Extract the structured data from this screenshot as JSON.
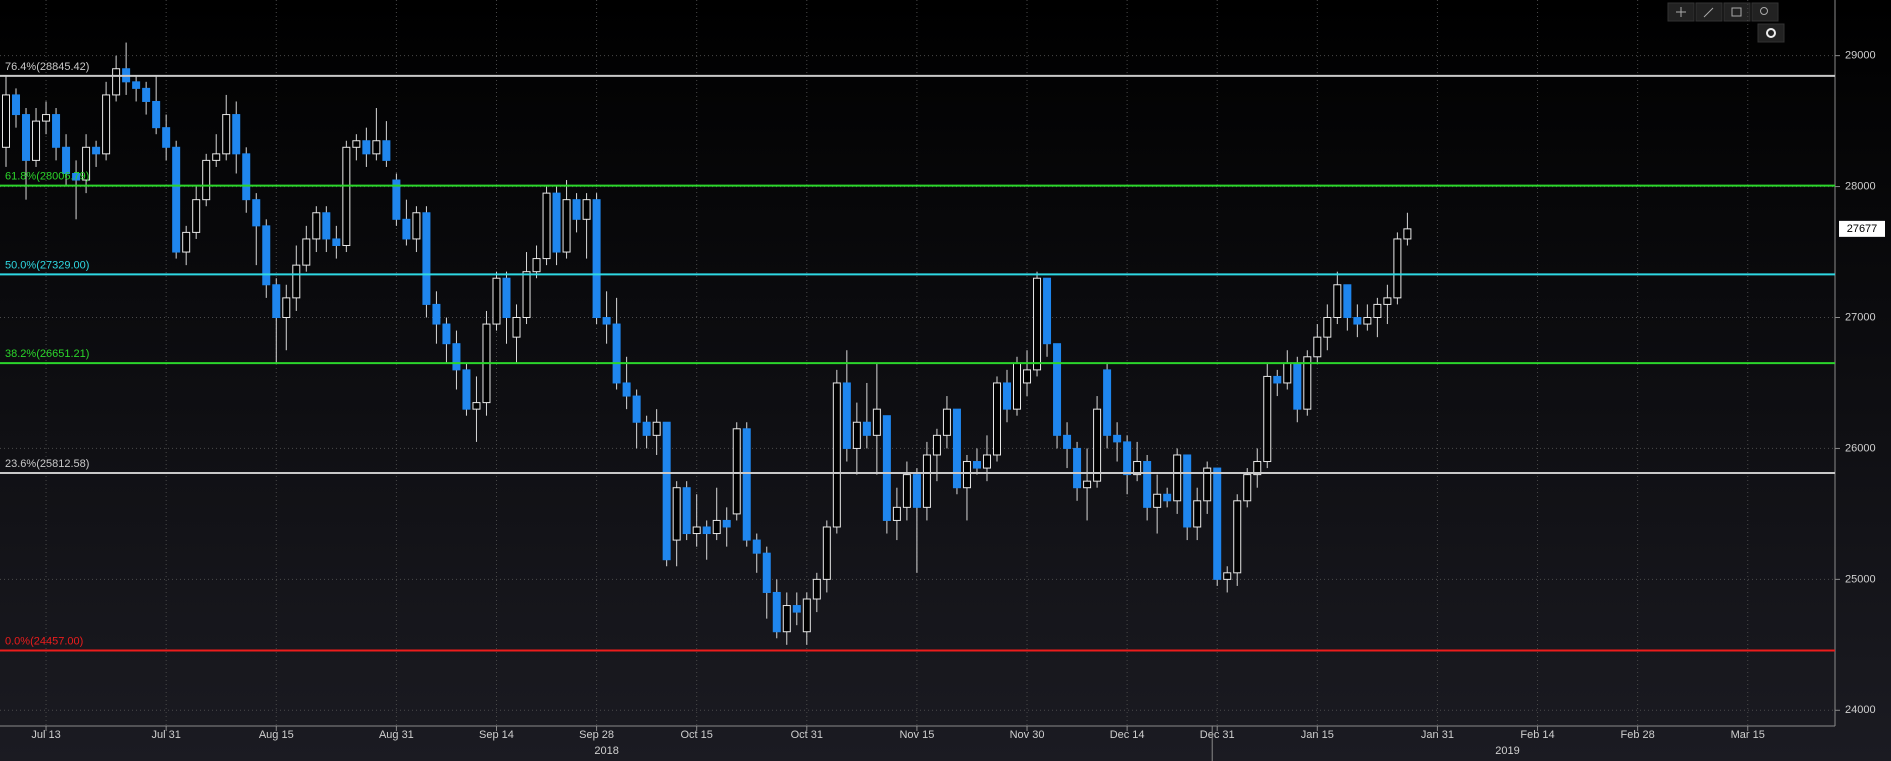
{
  "chart_data": {
    "type": "candlestick",
    "categories": [
      null,
      null,
      null,
      null,
      "Jul 13",
      null,
      null,
      null,
      null,
      null,
      null,
      null,
      null,
      null,
      null,
      null,
      "Jul 31",
      null,
      null,
      null,
      null,
      null,
      null,
      null,
      null,
      null,
      null,
      "Aug 15",
      null,
      null,
      null,
      null,
      null,
      null,
      null,
      null,
      null,
      null,
      null,
      "Aug 31",
      null,
      null,
      null,
      null,
      null,
      null,
      null,
      null,
      null,
      "Sep 14",
      null,
      null,
      null,
      null,
      null,
      null,
      null,
      null,
      null,
      "Sep 28",
      null,
      null,
      null,
      null,
      null,
      null,
      null,
      null,
      null,
      "Oct 15",
      null,
      null,
      null,
      null,
      null,
      null,
      null,
      null,
      null,
      null,
      "Oct 31",
      null,
      null,
      null,
      null,
      null,
      null,
      null,
      null,
      null,
      null,
      "Nov 15",
      null,
      null,
      null,
      null,
      null,
      null,
      null,
      null,
      null,
      null,
      "Nov 30",
      null,
      null,
      null,
      null,
      null,
      null,
      null,
      null,
      null,
      "Dec 14",
      null,
      null,
      null,
      null,
      null,
      null,
      null,
      null,
      "Dec 31",
      null,
      null,
      null,
      null,
      null,
      null,
      null,
      null,
      null,
      "Jan 15",
      null,
      null,
      null,
      null,
      null,
      null,
      null,
      null,
      null,
      null,
      null,
      "Jan 31",
      null,
      null,
      null,
      null,
      null,
      null,
      null,
      null,
      null,
      "Feb 14",
      null,
      null,
      null,
      null,
      null,
      null,
      null,
      null,
      null,
      "Feb 28",
      null,
      null,
      null,
      null,
      null,
      null,
      null,
      null,
      null,
      null,
      "Mar 15",
      null,
      null,
      null,
      null,
      null,
      null,
      null,
      null
    ],
    "open": [
      28300,
      28700,
      28550,
      28200,
      28500,
      28550,
      28300,
      28100,
      28050,
      28300,
      28250,
      28700,
      28900,
      28800,
      28750,
      28650,
      28450,
      28300,
      27500,
      27650,
      27900,
      28200,
      28250,
      28550,
      28250,
      27900,
      27700,
      27250,
      27000,
      27150,
      27400,
      27600,
      27800,
      27600,
      27550,
      28300,
      28350,
      28250,
      28350,
      28050,
      27750,
      27600,
      27800,
      27100,
      26950,
      26800,
      26600,
      26300,
      26350,
      26950,
      27300,
      26850,
      27000,
      27350,
      27450,
      27950,
      27500,
      27900,
      27750,
      27900,
      27000,
      26950,
      26500,
      26400,
      26200,
      26100,
      26200,
      25300,
      25700,
      25350,
      25400,
      25350,
      25450,
      25500,
      26150,
      25300,
      25200,
      24900,
      24600,
      24800,
      24600,
      24850,
      25000,
      25400,
      26500,
      26000,
      26200,
      26100,
      26250,
      25450,
      25550,
      25800,
      25550,
      25950,
      26100,
      26300,
      25700,
      25900,
      25850,
      25950,
      26500,
      26300,
      26500,
      26600,
      27300,
      26800,
      26100,
      26000,
      25700,
      25750,
      26600,
      26100,
      26050,
      25800,
      25900,
      25550,
      25650,
      25600,
      25950,
      25400,
      25600,
      25850,
      25000,
      25050,
      25600,
      25800,
      25900,
      26550,
      26500,
      26650,
      26300,
      26700,
      26850,
      27000,
      27250,
      27000,
      26950,
      27000,
      27100,
      27150,
      27600,
      null,
      null,
      null,
      null,
      null,
      null,
      null,
      null,
      null,
      null,
      null,
      null,
      null,
      null,
      null,
      null,
      null,
      null,
      null,
      null,
      null,
      null,
      null,
      null,
      null,
      null,
      null,
      null,
      null,
      null,
      null,
      null,
      null,
      null,
      null,
      null,
      null,
      null,
      null,
      null,
      null,
      null
    ],
    "high": [
      28850,
      28750,
      28600,
      28600,
      28650,
      28600,
      28400,
      28200,
      28400,
      28350,
      28800,
      29000,
      29100,
      28850,
      28800,
      28850,
      28550,
      28350,
      27700,
      28000,
      28250,
      28400,
      28700,
      28650,
      28300,
      27950,
      27750,
      27300,
      27250,
      27550,
      27700,
      27850,
      27850,
      27700,
      28350,
      28400,
      28450,
      28600,
      28500,
      28100,
      27900,
      27850,
      27850,
      27200,
      27000,
      26900,
      26650,
      26550,
      27050,
      27350,
      27350,
      27100,
      27500,
      27550,
      28000,
      28000,
      28050,
      27950,
      27950,
      27950,
      27200,
      27150,
      26700,
      26450,
      26250,
      26300,
      26200,
      25750,
      25750,
      25650,
      25450,
      25700,
      25550,
      26200,
      26200,
      25350,
      25250,
      25000,
      24900,
      24900,
      24900,
      25050,
      25450,
      26600,
      26750,
      26350,
      26500,
      26650,
      26250,
      25700,
      25900,
      25850,
      26050,
      26150,
      26400,
      26300,
      25950,
      26000,
      26100,
      26550,
      26600,
      26700,
      26750,
      27350,
      27300,
      26800,
      26200,
      26050,
      26000,
      26400,
      26650,
      26200,
      26100,
      26050,
      25950,
      25800,
      25700,
      26000,
      25950,
      25700,
      25900,
      25850,
      25100,
      25650,
      25850,
      26000,
      26650,
      26600,
      26750,
      26700,
      26750,
      26950,
      27100,
      27350,
      27250,
      27100,
      27100,
      27150,
      27250,
      27650,
      27800,
      null,
      null,
      null,
      null,
      null,
      null,
      null,
      null,
      null,
      null,
      null,
      null,
      null,
      null,
      null,
      null,
      null,
      null,
      null,
      null,
      null,
      null,
      null,
      null,
      null,
      null,
      null,
      null,
      null,
      null,
      null,
      null,
      null,
      null,
      null,
      null,
      null,
      null,
      null,
      null,
      null,
      null
    ],
    "low": [
      28150,
      28450,
      27900,
      28150,
      28400,
      28200,
      28000,
      27750,
      27950,
      28150,
      28200,
      28650,
      28700,
      28650,
      28550,
      28400,
      28200,
      27450,
      27400,
      27600,
      27850,
      28150,
      28200,
      28100,
      27800,
      27400,
      27150,
      26650,
      26750,
      27050,
      27350,
      27500,
      27500,
      27450,
      27500,
      28200,
      28150,
      28200,
      28150,
      27700,
      27550,
      27500,
      27000,
      26800,
      26650,
      26450,
      26250,
      26050,
      26250,
      26900,
      26800,
      26650,
      26950,
      27300,
      27400,
      27400,
      27450,
      27650,
      27450,
      26950,
      26800,
      26450,
      26300,
      26000,
      26000,
      25950,
      25100,
      25100,
      25300,
      25250,
      25150,
      25300,
      25250,
      25450,
      25250,
      25050,
      24700,
      24550,
      24500,
      24650,
      24500,
      24750,
      24900,
      25350,
      25900,
      25800,
      26000,
      25800,
      25350,
      25300,
      25450,
      25050,
      25450,
      25750,
      26000,
      25650,
      25450,
      25800,
      25750,
      25900,
      26200,
      26250,
      26400,
      26550,
      26700,
      26000,
      25850,
      25600,
      25450,
      25700,
      26000,
      25900,
      25650,
      25750,
      25450,
      25350,
      25550,
      25500,
      25300,
      25300,
      25500,
      24950,
      24900,
      24950,
      25550,
      25700,
      25850,
      26400,
      26450,
      26200,
      26250,
      26650,
      26750,
      26950,
      26900,
      26850,
      26900,
      26850,
      26950,
      27100,
      27550,
      null,
      null,
      null,
      null,
      null,
      null,
      null,
      null,
      null,
      null,
      null,
      null,
      null,
      null,
      null,
      null,
      null,
      null,
      null,
      null,
      null,
      null,
      null,
      null,
      null,
      null,
      null,
      null,
      null,
      null,
      null,
      null,
      null,
      null,
      null,
      null,
      null,
      null,
      null,
      null,
      null,
      null
    ],
    "close": [
      28700,
      28550,
      28200,
      28500,
      28550,
      28300,
      28100,
      28050,
      28300,
      28250,
      28700,
      28900,
      28800,
      28750,
      28650,
      28450,
      28300,
      27500,
      27650,
      27900,
      28200,
      28250,
      28550,
      28250,
      27900,
      27700,
      27250,
      27000,
      27150,
      27400,
      27600,
      27800,
      27600,
      27550,
      28300,
      28350,
      28250,
      28350,
      28200,
      27750,
      27600,
      27800,
      27100,
      26950,
      26800,
      26600,
      26300,
      26350,
      26950,
      27300,
      27000,
      27000,
      27350,
      27450,
      27950,
      27500,
      27900,
      27750,
      27900,
      27000,
      26950,
      26500,
      26400,
      26200,
      26100,
      26200,
      25150,
      25700,
      25350,
      25400,
      25350,
      25450,
      25400,
      26150,
      25300,
      25200,
      24900,
      24600,
      24800,
      24750,
      24850,
      25000,
      25400,
      26500,
      26000,
      26200,
      26100,
      26300,
      25450,
      25550,
      25800,
      25550,
      25950,
      26100,
      26300,
      25700,
      25900,
      25850,
      25950,
      26500,
      26300,
      26650,
      26600,
      27300,
      26800,
      26100,
      26000,
      25700,
      25750,
      26300,
      26100,
      26050,
      25800,
      25900,
      25550,
      25650,
      25600,
      25950,
      25400,
      25600,
      25850,
      25000,
      25050,
      25600,
      25800,
      25900,
      26550,
      26500,
      26650,
      26300,
      26700,
      26850,
      27000,
      27250,
      27000,
      26950,
      27000,
      27100,
      27150,
      27600,
      27677,
      null,
      null,
      null,
      null,
      null,
      null,
      null,
      null,
      null,
      null,
      null,
      null,
      null,
      null,
      null,
      null,
      null,
      null,
      null,
      null,
      null,
      null,
      null,
      null,
      null,
      null,
      null,
      null,
      null,
      null,
      null,
      null,
      null,
      null,
      null,
      null,
      null,
      null,
      null,
      null,
      null,
      null
    ],
    "up_color": "#000000",
    "down_color": "#1f86ee",
    "ylim": [
      23880,
      29425
    ],
    "yticks": [
      24000,
      25000,
      26000,
      27000,
      28000,
      29000
    ],
    "grid": true,
    "years": [
      "2018",
      "2019"
    ],
    "fib_levels": [
      {
        "label": "76.4%(28845.42)",
        "value": 28845.42,
        "color": "#c9c9c9"
      },
      {
        "label": "61.8%(28006.79)",
        "value": 28006.79,
        "color": "#2bd62b"
      },
      {
        "label": "50.0%(27329.00)",
        "value": 27329.0,
        "color": "#2fd8e2"
      },
      {
        "label": "38.2%(26651.21)",
        "value": 26651.21,
        "color": "#2bd62b"
      },
      {
        "label": "23.6%(25812.58)",
        "value": 25812.58,
        "color": "#c9c9c9"
      },
      {
        "label": "0.0%(24457.00)",
        "value": 24457.0,
        "color": "#ec1c1c"
      }
    ]
  }
}
